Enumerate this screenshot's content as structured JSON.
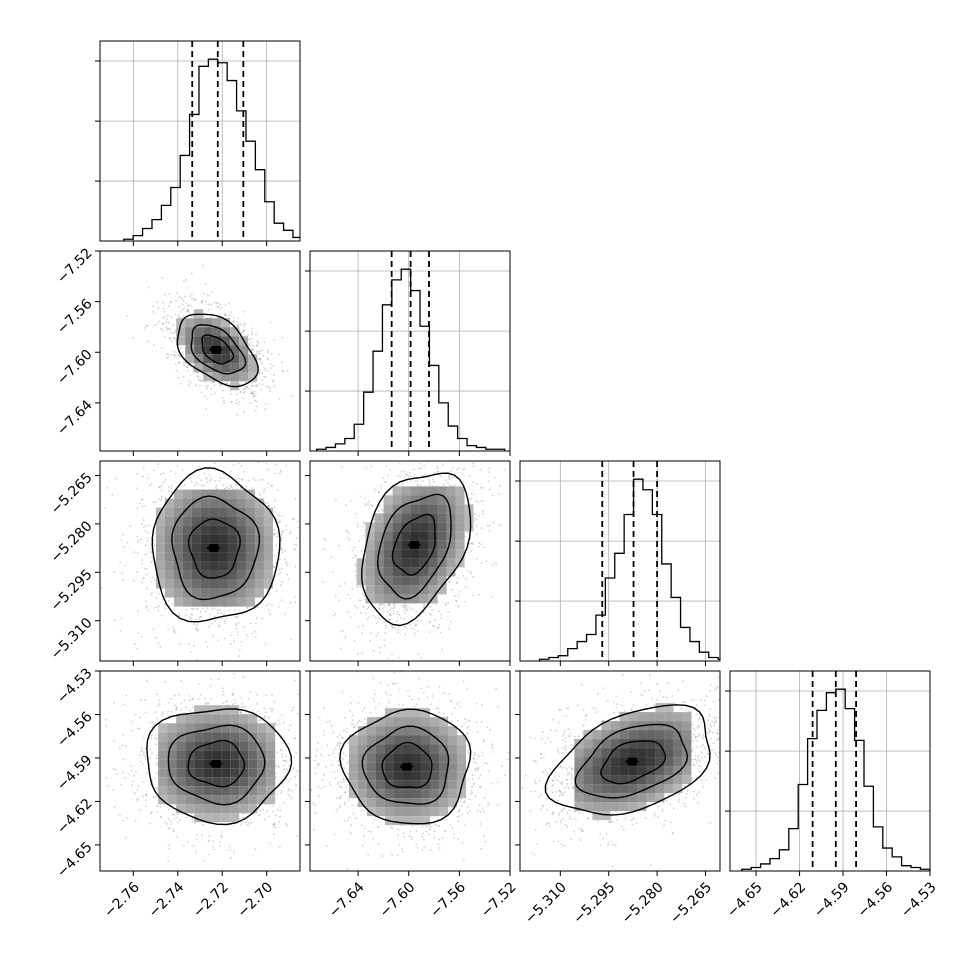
{
  "chart_data": {
    "type": "corner",
    "title": "",
    "grid": true,
    "dimensions": [
      {
        "xlim": [
          -2.775,
          -2.685
        ],
        "ticks": [
          -2.76,
          -2.74,
          -2.72,
          -2.7
        ],
        "labels": [
          "−2.76",
          "−2.74",
          "−2.72",
          "−2.70"
        ],
        "quantiles": [
          -2.7335,
          -2.722,
          -2.7105
        ]
      },
      {
        "xlim": [
          -7.678,
          -7.52
        ],
        "ticks": [
          -7.64,
          -7.6,
          -7.56,
          -7.52
        ],
        "labels": [
          "−7.64",
          "−7.60",
          "−7.56",
          "−7.52"
        ],
        "quantiles": [
          -7.6135,
          -7.5985,
          -7.584
        ]
      },
      {
        "xlim": [
          -5.3225,
          -5.2605
        ],
        "ticks": [
          -5.31,
          -5.295,
          -5.28,
          -5.265
        ],
        "labels": [
          "−5.310",
          "−5.295",
          "−5.280",
          "−5.265"
        ],
        "quantiles": [
          -5.297,
          -5.2873,
          -5.28
        ]
      },
      {
        "xlim": [
          -4.668,
          -4.53
        ],
        "ticks": [
          -4.65,
          -4.62,
          -4.59,
          -4.56,
          -4.53
        ],
        "labels": [
          "−4.65",
          "−4.62",
          "−4.59",
          "−4.56",
          "−4.53"
        ],
        "quantiles": [
          -4.611,
          -4.595,
          -4.581
        ]
      }
    ],
    "histograms": [
      [
        1,
        3,
        7,
        12,
        20,
        30,
        48,
        71,
        98,
        102,
        100,
        90,
        73,
        56,
        40,
        22,
        10,
        6,
        2,
        1
      ],
      [
        1,
        2,
        4,
        7,
        15,
        33,
        56,
        82,
        96,
        102,
        90,
        70,
        48,
        27,
        14,
        7,
        3,
        2,
        1,
        1
      ],
      [
        1,
        2,
        3,
        7,
        11,
        15,
        26,
        47,
        61,
        83,
        103,
        97,
        83,
        55,
        36,
        19,
        11,
        5,
        2,
        1
      ],
      [
        1,
        2,
        4,
        7,
        12,
        24,
        49,
        75,
        91,
        101,
        103,
        92,
        74,
        48,
        25,
        13,
        8,
        3,
        2,
        1
      ]
    ],
    "pairs": [
      {
        "row": 1,
        "col": 0,
        "peak": [
          -2.7225,
          -7.598
        ],
        "correlation": -0.45,
        "core_range_row": [
          -7.606,
          -7.59
        ],
        "core_range_col": [
          -2.728,
          -2.718
        ]
      },
      {
        "row": 2,
        "col": 0,
        "peak": [
          -2.7235,
          -5.2875
        ],
        "correlation": 0.0,
        "core_range_row": [
          -5.294,
          -5.281
        ],
        "core_range_col": [
          -2.731,
          -2.715
        ]
      },
      {
        "row": 2,
        "col": 1,
        "peak": [
          -7.595,
          -5.2865
        ],
        "correlation": 0.35,
        "core_range_row": [
          -5.293,
          -5.28
        ],
        "core_range_col": [
          -7.61,
          -7.586
        ]
      },
      {
        "row": 3,
        "col": 0,
        "peak": [
          -2.7225,
          -4.594
        ],
        "correlation": 0.0,
        "core_range_row": [
          -4.605,
          -4.583
        ],
        "core_range_col": [
          -2.731,
          -2.713
        ]
      },
      {
        "row": 3,
        "col": 1,
        "peak": [
          -7.601,
          -4.596
        ],
        "correlation": 0.0,
        "core_range_row": [
          -4.608,
          -4.586
        ],
        "core_range_col": [
          -7.614,
          -7.586
        ]
      },
      {
        "row": 3,
        "col": 2,
        "peak": [
          -5.2875,
          -4.5925
        ],
        "correlation": 0.4,
        "core_range_row": [
          -4.603,
          -4.582
        ],
        "core_range_col": [
          -5.294,
          -5.28
        ]
      }
    ],
    "hist_y_ticks": [
      0.333,
      0.666,
      1.0
    ]
  }
}
